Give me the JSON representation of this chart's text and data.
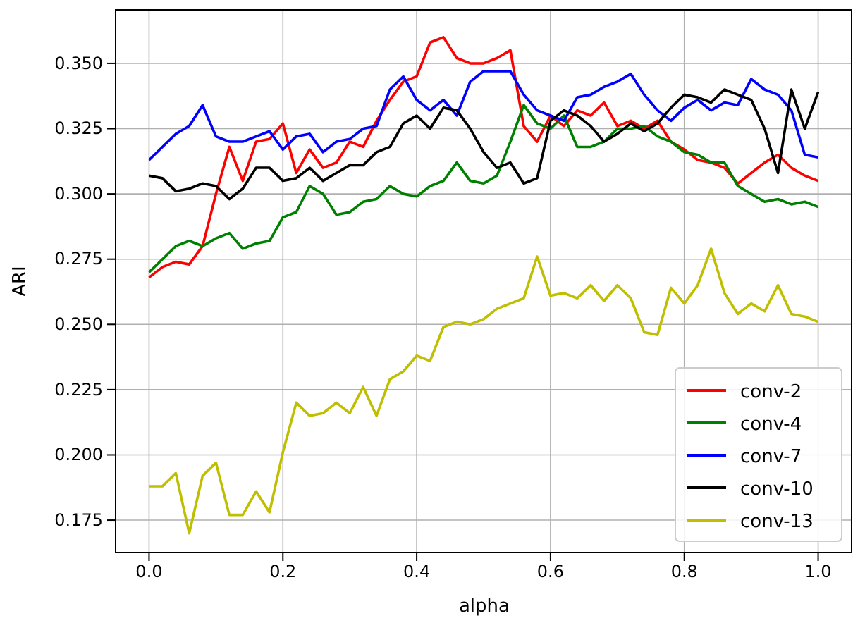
{
  "chart_data": {
    "type": "line",
    "xlabel": "alpha",
    "ylabel": "ARI",
    "x": [
      0,
      0.02,
      0.04,
      0.06,
      0.08,
      0.1,
      0.12,
      0.14,
      0.16,
      0.18,
      0.2,
      0.22,
      0.24,
      0.26,
      0.28,
      0.3,
      0.32,
      0.34,
      0.36,
      0.38,
      0.4,
      0.42,
      0.44,
      0.46,
      0.48,
      0.5,
      0.52,
      0.54,
      0.56,
      0.58,
      0.6,
      0.62,
      0.64,
      0.66,
      0.68,
      0.7,
      0.72,
      0.74,
      0.76,
      0.78,
      0.8,
      0.82,
      0.84,
      0.86,
      0.88,
      0.9,
      0.92,
      0.94,
      0.96,
      0.98,
      1.0
    ],
    "series": [
      {
        "name": "conv-2",
        "color": "#ff0000",
        "values": [
          0.268,
          0.272,
          0.274,
          0.273,
          0.28,
          0.3,
          0.318,
          0.305,
          0.32,
          0.321,
          0.327,
          0.308,
          0.317,
          0.31,
          0.312,
          0.32,
          0.318,
          0.328,
          0.336,
          0.343,
          0.345,
          0.358,
          0.36,
          0.352,
          0.35,
          0.35,
          0.352,
          0.355,
          0.326,
          0.32,
          0.33,
          0.326,
          0.332,
          0.33,
          0.335,
          0.326,
          0.328,
          0.325,
          0.328,
          0.32,
          0.317,
          0.313,
          0.312,
          0.31,
          0.304,
          0.308,
          0.312,
          0.315,
          0.31,
          0.307,
          0.305
        ]
      },
      {
        "name": "conv-4",
        "color": "#008000",
        "values": [
          0.27,
          0.275,
          0.28,
          0.282,
          0.28,
          0.283,
          0.285,
          0.279,
          0.281,
          0.282,
          0.291,
          0.293,
          0.303,
          0.3,
          0.292,
          0.293,
          0.297,
          0.298,
          0.303,
          0.3,
          0.299,
          0.303,
          0.305,
          0.312,
          0.305,
          0.304,
          0.307,
          0.32,
          0.334,
          0.327,
          0.325,
          0.33,
          0.318,
          0.318,
          0.32,
          0.325,
          0.325,
          0.326,
          0.322,
          0.32,
          0.316,
          0.315,
          0.312,
          0.312,
          0.303,
          0.3,
          0.297,
          0.298,
          0.296,
          0.297,
          0.295
        ]
      },
      {
        "name": "conv-7",
        "color": "#0000ff",
        "values": [
          0.313,
          0.318,
          0.323,
          0.326,
          0.334,
          0.322,
          0.32,
          0.32,
          0.322,
          0.324,
          0.317,
          0.322,
          0.323,
          0.316,
          0.32,
          0.321,
          0.325,
          0.326,
          0.34,
          0.345,
          0.336,
          0.332,
          0.336,
          0.33,
          0.343,
          0.347,
          0.347,
          0.347,
          0.338,
          0.332,
          0.33,
          0.328,
          0.337,
          0.338,
          0.341,
          0.343,
          0.346,
          0.338,
          0.332,
          0.328,
          0.333,
          0.336,
          0.332,
          0.335,
          0.334,
          0.344,
          0.34,
          0.338,
          0.332,
          0.315,
          0.314
        ]
      },
      {
        "name": "conv-10",
        "color": "#000000",
        "values": [
          0.307,
          0.306,
          0.301,
          0.302,
          0.304,
          0.303,
          0.298,
          0.302,
          0.31,
          0.31,
          0.305,
          0.306,
          0.31,
          0.305,
          0.308,
          0.311,
          0.311,
          0.316,
          0.318,
          0.327,
          0.33,
          0.325,
          0.333,
          0.332,
          0.325,
          0.316,
          0.31,
          0.312,
          0.304,
          0.306,
          0.328,
          0.332,
          0.33,
          0.326,
          0.32,
          0.323,
          0.327,
          0.324,
          0.327,
          0.333,
          0.338,
          0.337,
          0.335,
          0.34,
          0.338,
          0.336,
          0.325,
          0.308,
          0.34,
          0.325,
          0.339
        ]
      },
      {
        "name": "conv-13",
        "color": "#bfbf00",
        "values": [
          0.188,
          0.188,
          0.193,
          0.17,
          0.192,
          0.197,
          0.177,
          0.177,
          0.186,
          0.178,
          0.201,
          0.22,
          0.215,
          0.216,
          0.22,
          0.216,
          0.226,
          0.215,
          0.229,
          0.232,
          0.238,
          0.236,
          0.249,
          0.251,
          0.25,
          0.252,
          0.256,
          0.258,
          0.26,
          0.276,
          0.261,
          0.262,
          0.26,
          0.265,
          0.259,
          0.265,
          0.26,
          0.247,
          0.246,
          0.264,
          0.258,
          0.265,
          0.279,
          0.262,
          0.254,
          0.258,
          0.255,
          0.265,
          0.254,
          0.253,
          0.251
        ]
      }
    ],
    "xlim": [
      -0.05,
      1.05
    ],
    "xticks": [
      {
        "value": 0,
        "label": "0.0"
      },
      {
        "value": 0.2,
        "label": "0.2"
      },
      {
        "value": 0.4,
        "label": "0.4"
      },
      {
        "value": 0.6,
        "label": "0.6"
      },
      {
        "value": 0.8,
        "label": "0.8"
      },
      {
        "value": 1.0,
        "label": "1.0"
      }
    ],
    "ylim": [
      0.1626,
      0.3705
    ],
    "yticks": [
      {
        "value": 0.175,
        "label": "0.175"
      },
      {
        "value": 0.2,
        "label": "0.200"
      },
      {
        "value": 0.225,
        "label": "0.225"
      },
      {
        "value": 0.25,
        "label": "0.250"
      },
      {
        "value": 0.275,
        "label": "0.275"
      },
      {
        "value": 0.3,
        "label": "0.300"
      },
      {
        "value": 0.325,
        "label": "0.325"
      },
      {
        "value": 0.35,
        "label": "0.350"
      }
    ],
    "grid": true,
    "legend": "bottom right",
    "line_style": "solid",
    "marker": "none"
  }
}
